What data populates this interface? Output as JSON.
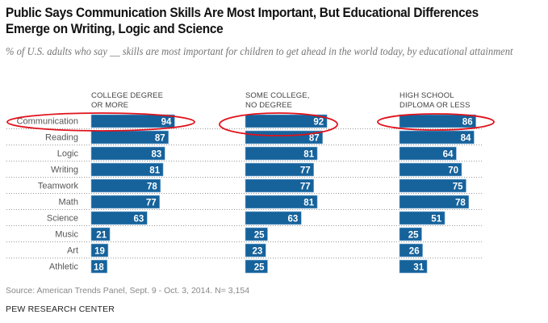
{
  "title": "Public Says Communication Skills Are Most Important, But Educational Differences Emerge on Writing, Logic and Science",
  "subtitle": "% of U.S. adults who say __ skills are most important for children to get ahead in the world today, by educational attainment",
  "source": "Source: American Trends Panel, Sept. 9 - Oct. 3, 2014. N= 3,154",
  "brand": "PEW RESEARCH CENTER",
  "colors": {
    "bar": "#16629b",
    "bar_edge": "#8fb9dc",
    "label_text": "#ffffff",
    "highlight": "#e0121b",
    "divider": "#999999"
  },
  "chart_data": {
    "type": "bar",
    "orientation": "horizontal",
    "title": "Public Says Communication Skills Are Most Important, But Educational Differences Emerge on Writing, Logic and Science",
    "subtitle": "% of U.S. adults who say __ skills are most important for children to get ahead in the world today, by educational attainment",
    "categories": [
      "Communication",
      "Reading",
      "Logic",
      "Writing",
      "Teamwork",
      "Math",
      "Science",
      "Music",
      "Art",
      "Athletic"
    ],
    "series": [
      {
        "name": "COLLEGE DEGREE OR MORE",
        "name_lines": [
          "COLLEGE DEGREE",
          "OR MORE"
        ],
        "values": [
          94,
          87,
          83,
          81,
          78,
          77,
          63,
          21,
          19,
          18
        ]
      },
      {
        "name": "SOME COLLEGE, NO DEGREE",
        "name_lines": [
          "SOME COLLEGE,",
          "NO DEGREE"
        ],
        "values": [
          92,
          87,
          81,
          77,
          77,
          81,
          63,
          25,
          23,
          25
        ]
      },
      {
        "name": "HIGH SCHOOL DIPLOMA OR LESS",
        "name_lines": [
          "HIGH SCHOOL",
          "DIPLOMA OR LESS"
        ],
        "values": [
          86,
          84,
          64,
          70,
          75,
          78,
          51,
          25,
          26,
          31
        ]
      }
    ],
    "highlighted_category": "Communication",
    "xlim": [
      0,
      100
    ],
    "grid": false,
    "data_labels": true,
    "xlabel": "",
    "ylabel": ""
  }
}
